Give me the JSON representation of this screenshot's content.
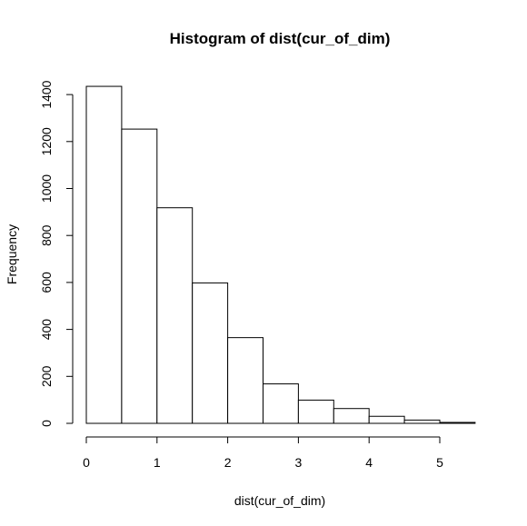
{
  "chart_data": {
    "type": "bar",
    "title": "Histogram of dist(cur_of_dim)",
    "xlabel": "dist(cur_of_dim)",
    "ylabel": "Frequency",
    "bins": [
      {
        "start": 0.0,
        "end": 0.5,
        "count": 1435
      },
      {
        "start": 0.5,
        "end": 1.0,
        "count": 1253
      },
      {
        "start": 1.0,
        "end": 1.5,
        "count": 918
      },
      {
        "start": 1.5,
        "end": 2.0,
        "count": 598
      },
      {
        "start": 2.0,
        "end": 2.5,
        "count": 365
      },
      {
        "start": 2.5,
        "end": 3.0,
        "count": 168
      },
      {
        "start": 3.0,
        "end": 3.5,
        "count": 99
      },
      {
        "start": 3.5,
        "end": 4.0,
        "count": 63
      },
      {
        "start": 4.0,
        "end": 4.5,
        "count": 30
      },
      {
        "start": 4.5,
        "end": 5.0,
        "count": 14
      },
      {
        "start": 5.0,
        "end": 5.5,
        "count": 4
      }
    ],
    "xticks": [
      0,
      1,
      2,
      3,
      4,
      5
    ],
    "yticks": [
      0,
      200,
      400,
      600,
      800,
      1000,
      1200,
      1400
    ],
    "xlim": [
      0,
      5.5
    ],
    "ylim": [
      0,
      1435
    ],
    "grid": false,
    "legend": "none"
  }
}
